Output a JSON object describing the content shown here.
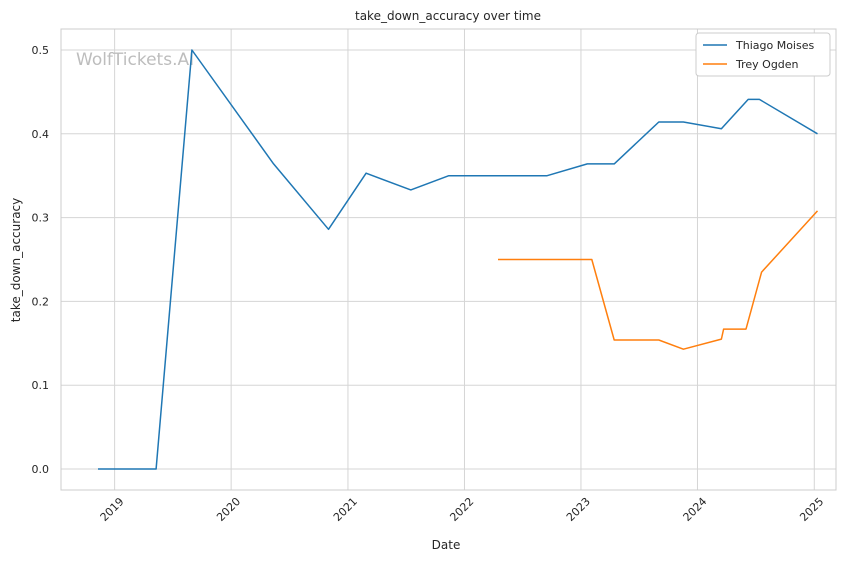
{
  "watermark": "WolfTickets.AI",
  "chart_data": {
    "type": "line",
    "title": "take_down_accuracy over time",
    "xlabel": "Date",
    "ylabel": "take_down_accuracy",
    "x_axis_type": "date",
    "xlim": [
      "2018-07-17",
      "2025-03-10"
    ],
    "ylim": [
      -0.025,
      0.525
    ],
    "x_ticks": [
      "2019",
      "2020",
      "2021",
      "2022",
      "2023",
      "2024",
      "2025"
    ],
    "y_ticks": [
      "0.0",
      "0.1",
      "0.2",
      "0.3",
      "0.4",
      "0.5"
    ],
    "grid": true,
    "legend_position": "top-right",
    "colors": {
      "Thiago Moises": "#1f77b4",
      "Trey Ogden": "#ff7f0e",
      "grid": "#d5d5d5",
      "axes": "#cccccc"
    },
    "series": [
      {
        "name": "Thiago Moises",
        "color": "#1f77b4",
        "points": [
          [
            "2018-11-10",
            0.0
          ],
          [
            "2019-05-11",
            0.0
          ],
          [
            "2019-08-31",
            0.5
          ],
          [
            "2020-05-13",
            0.364
          ],
          [
            "2020-11-01",
            0.286
          ],
          [
            "2021-02-27",
            0.353
          ],
          [
            "2021-07-17",
            0.333
          ],
          [
            "2021-11-13",
            0.35
          ],
          [
            "2022-09-17",
            0.35
          ],
          [
            "2023-01-21",
            0.364
          ],
          [
            "2023-04-15",
            0.364
          ],
          [
            "2023-09-02",
            0.414
          ],
          [
            "2023-11-18",
            0.414
          ],
          [
            "2024-03-16",
            0.406
          ],
          [
            "2024-06-08",
            0.441
          ],
          [
            "2024-07-13",
            0.441
          ],
          [
            "2025-01-11",
            0.4
          ]
        ]
      },
      {
        "name": "Trey Ogden",
        "color": "#ff7f0e",
        "points": [
          [
            "2022-04-16",
            0.25
          ],
          [
            "2023-02-04",
            0.25
          ],
          [
            "2023-04-15",
            0.154
          ],
          [
            "2023-09-02",
            0.154
          ],
          [
            "2023-11-18",
            0.143
          ],
          [
            "2024-03-16",
            0.155
          ],
          [
            "2024-03-23",
            0.167
          ],
          [
            "2024-06-01",
            0.167
          ],
          [
            "2024-07-20",
            0.235
          ],
          [
            "2025-01-11",
            0.308
          ]
        ]
      }
    ]
  }
}
